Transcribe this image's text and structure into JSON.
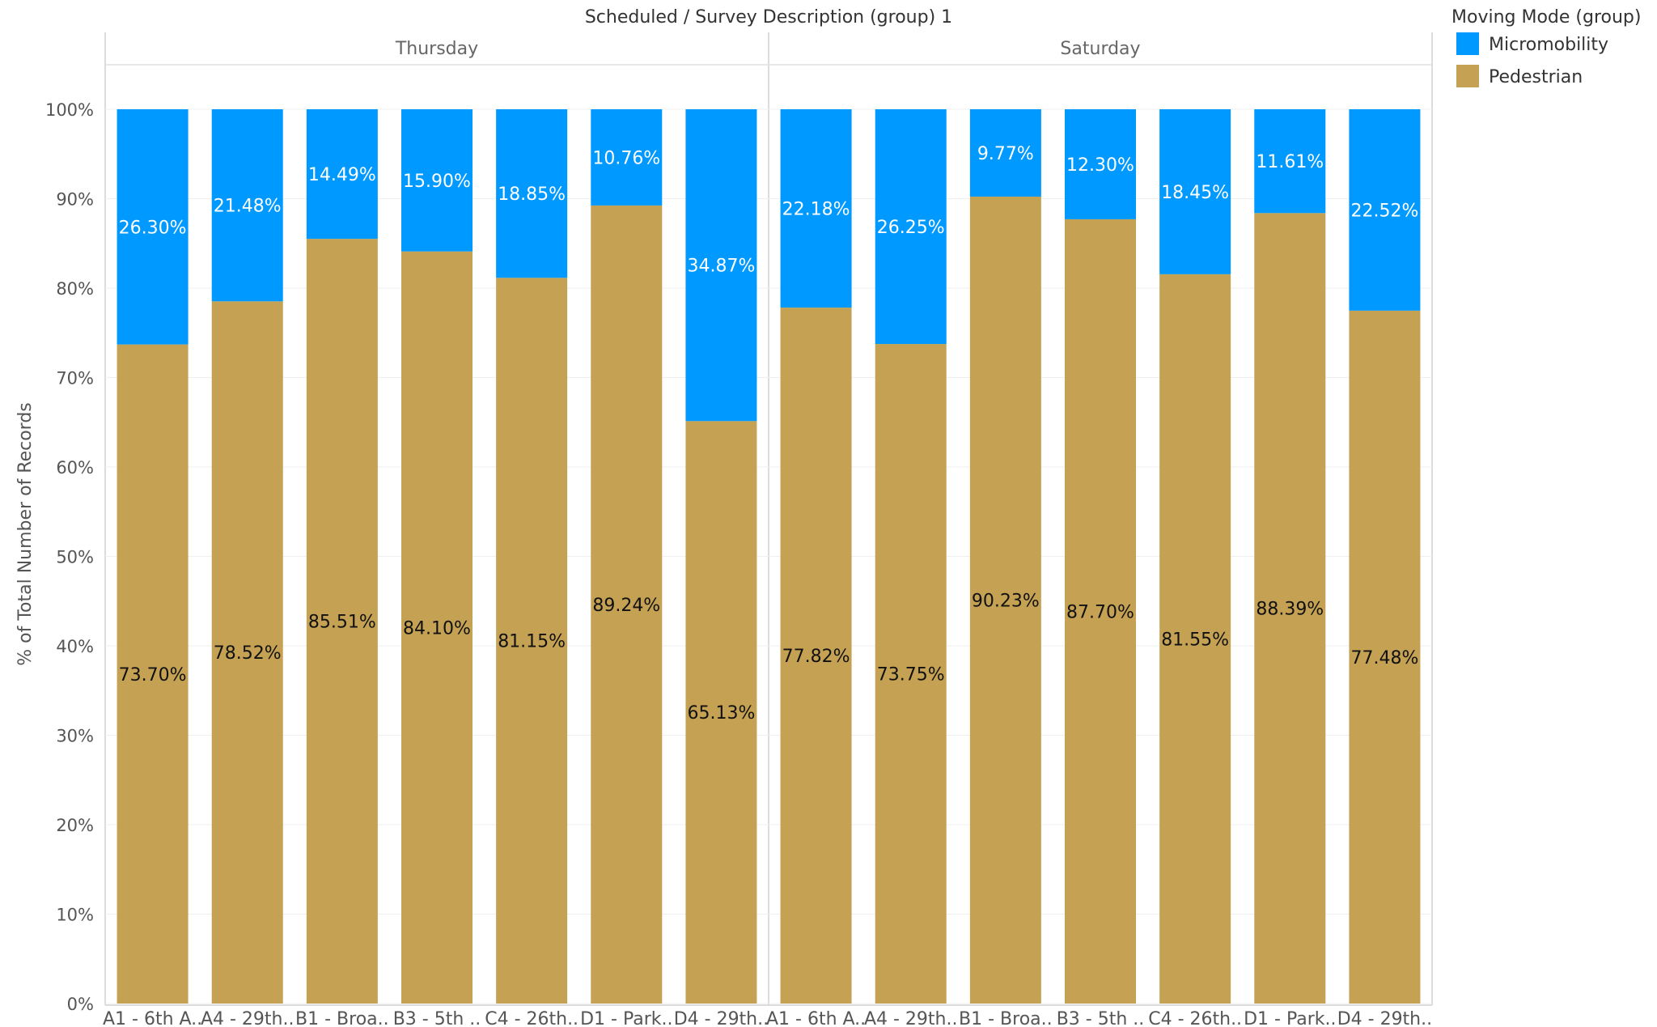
{
  "chart_data": {
    "type": "bar",
    "stacked": "percent",
    "header": "Scheduled  /  Survey Description (group) 1",
    "ylabel": "% of Total Number of Records",
    "ylim": [
      0,
      100
    ],
    "yticks": [
      "0%",
      "10%",
      "20%",
      "30%",
      "40%",
      "50%",
      "60%",
      "70%",
      "80%",
      "90%",
      "100%"
    ],
    "grid": true,
    "legend": {
      "title": "Moving Mode (group)",
      "position": "top-right",
      "items": [
        {
          "name": "Micromobility",
          "color": "#0099FF"
        },
        {
          "name": "Pedestrian",
          "color": "#C5A253"
        }
      ]
    },
    "panels": [
      {
        "label": "Thursday",
        "categories": [
          "A1 - 6th A..",
          "A4 - 29th..",
          "B1 - Broa..",
          "B3 - 5th ..",
          "C4 - 26th..",
          "D1 - Park..",
          "D4 - 29th.."
        ],
        "series": [
          {
            "name": "Pedestrian",
            "values": [
              73.7,
              78.52,
              85.51,
              84.1,
              81.15,
              89.24,
              65.13
            ],
            "labels": [
              "73.70%",
              "78.52%",
              "85.51%",
              "84.10%",
              "81.15%",
              "89.24%",
              "65.13%"
            ]
          },
          {
            "name": "Micromobility",
            "values": [
              26.3,
              21.48,
              14.49,
              15.9,
              18.85,
              10.76,
              34.87
            ],
            "labels": [
              "26.30%",
              "21.48%",
              "14.49%",
              "15.90%",
              "18.85%",
              "10.76%",
              "34.87%"
            ]
          }
        ]
      },
      {
        "label": "Saturday",
        "categories": [
          "A1 - 6th A..",
          "A4 - 29th..",
          "B1 - Broa..",
          "B3 - 5th ..",
          "C4 - 26th..",
          "D1 - Park..",
          "D4 - 29th.."
        ],
        "series": [
          {
            "name": "Pedestrian",
            "values": [
              77.82,
              73.75,
              90.23,
              87.7,
              81.55,
              88.39,
              77.48
            ],
            "labels": [
              "77.82%",
              "73.75%",
              "90.23%",
              "87.70%",
              "81.55%",
              "88.39%",
              "77.48%"
            ]
          },
          {
            "name": "Micromobility",
            "values": [
              22.18,
              26.25,
              9.77,
              12.3,
              18.45,
              11.61,
              22.52
            ],
            "labels": [
              "22.18%",
              "26.25%",
              "9.77%",
              "12.30%",
              "18.45%",
              "11.61%",
              "22.52%"
            ]
          }
        ]
      }
    ]
  }
}
